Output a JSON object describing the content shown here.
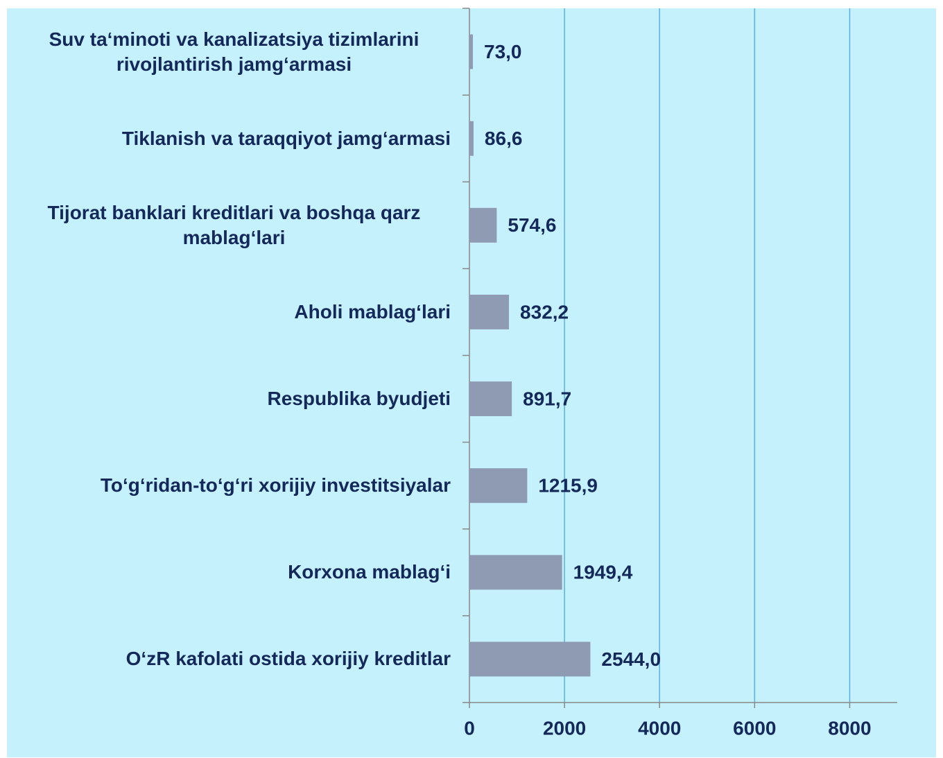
{
  "chart_data": {
    "type": "barh",
    "categories": [
      "Suv ta‘minoti va kanalizatsiya tizimlarini rivojlantirish jamg‘armasi",
      "Tiklanish va taraqqiyot jamg‘armasi",
      "Tijorat banklari kreditlari va  boshqa qarz mablag‘lari",
      "Aholi mablag‘lari",
      "Respublika byudjeti",
      "To‘g‘ridan-to‘g‘ri xorijiy investitsiyalar",
      "Korxona mablag‘i",
      "O‘zR kafolati ostida xorijiy kreditlar"
    ],
    "values": [
      73.0,
      86.6,
      574.6,
      832.2,
      891.7,
      1215.9,
      1949.4,
      2544.0
    ],
    "value_labels": [
      "73,0",
      "86,6",
      "574,6",
      "832,2",
      "891,7",
      "1215,9",
      "1949,4",
      "2544,0"
    ],
    "color": "#8f9bb3",
    "xlim": [
      0,
      9000
    ],
    "xticks": [
      0,
      2000,
      4000,
      6000,
      8000
    ],
    "grid": true
  }
}
